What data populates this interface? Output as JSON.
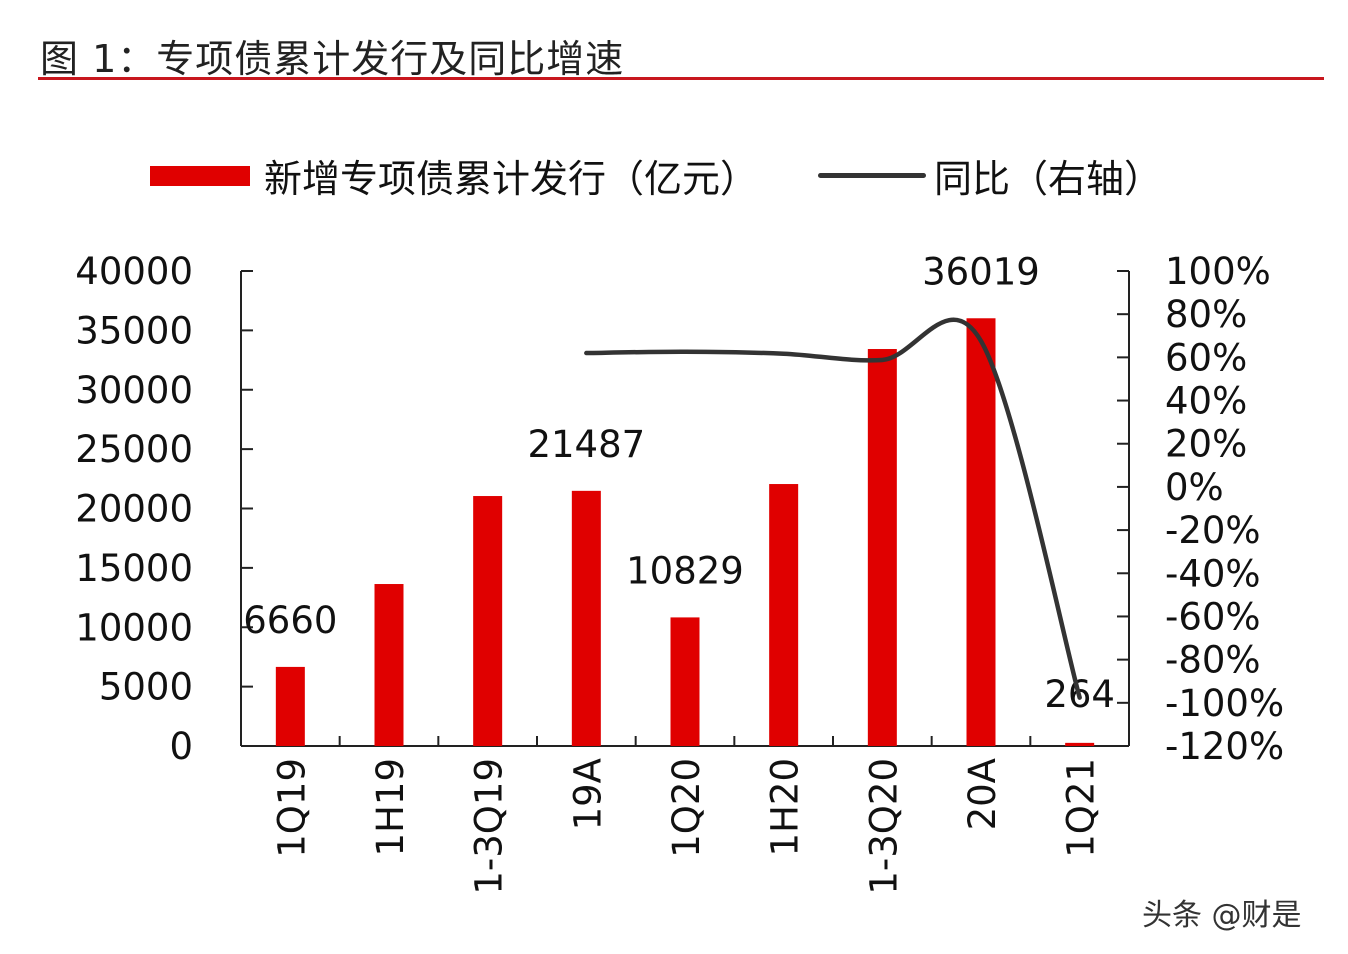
{
  "title": "图 1：专项债累计发行及同比增速",
  "watermark": "头条 @财是",
  "chart_data": {
    "type": "bar+line",
    "title": "图 1：专项债累计发行及同比增速",
    "categories": [
      "1Q19",
      "1H19",
      "1-3Q19",
      "19A",
      "1Q20",
      "1H20",
      "1-3Q20",
      "20A",
      "1Q21"
    ],
    "series": [
      {
        "name": "新增专项债累计发行（亿元）",
        "type": "bar",
        "axis": "left",
        "color": "#e00000",
        "values": [
          6660,
          13640,
          21050,
          21487,
          10829,
          22060,
          33430,
          36019,
          264
        ]
      },
      {
        "name": "同比（右轴）",
        "type": "line",
        "axis": "right",
        "color": "#333333",
        "values": [
          null,
          null,
          null,
          62,
          62.6,
          61.7,
          58.8,
          67.6,
          -97.6
        ]
      }
    ],
    "data_labels": [
      {
        "category": "1Q19",
        "text": "6660"
      },
      {
        "category": "19A",
        "text": "21487"
      },
      {
        "category": "1Q20",
        "text": "10829"
      },
      {
        "category": "20A",
        "text": "36019"
      },
      {
        "category": "1Q21",
        "text": "264"
      }
    ],
    "left_axis": {
      "ylim": [
        0,
        40000
      ],
      "ticks": [
        "0",
        "5000",
        "10000",
        "15000",
        "20000",
        "25000",
        "30000",
        "35000",
        "40000"
      ]
    },
    "right_axis": {
      "ylim": [
        -120,
        100
      ],
      "ticks": [
        "-120%",
        "-100%",
        "-80%",
        "-60%",
        "-40%",
        "-20%",
        "0%",
        "20%",
        "40%",
        "60%",
        "80%",
        "100%"
      ]
    },
    "legend": {
      "position": "top",
      "entries": [
        "新增专项债累计发行（亿元）",
        "同比（右轴）"
      ]
    },
    "grid": false
  }
}
